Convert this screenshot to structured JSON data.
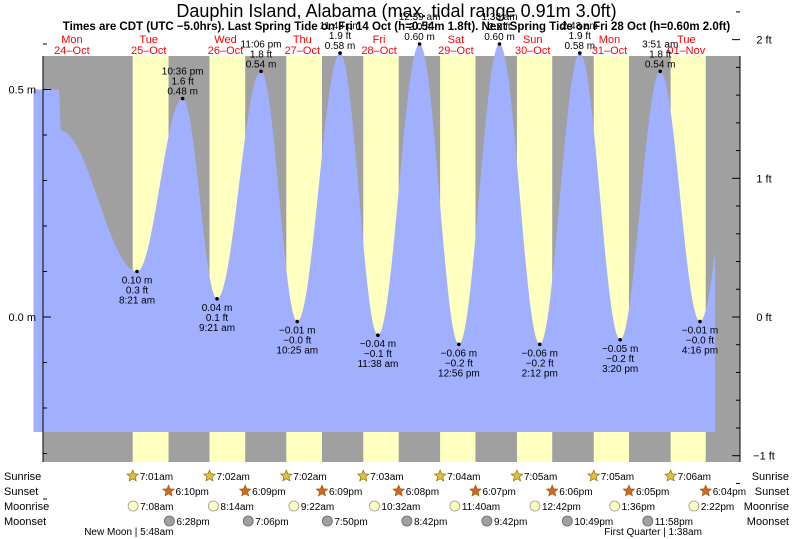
{
  "title": "Dauphin Island, Alabama (max. tidal range 0.91m 3.0ft)",
  "subtitle": "Times are CDT (UTC −5.0hrs). Last Spring Tide on Fri 14 Oct (h=0.54m 1.8ft). Next Spring Tide on Fri 28 Oct (h=0.60m 2.0ft)",
  "colors": {
    "night": "#a0a0a0",
    "day": "#ffffc0",
    "tide": "#a0b0ff",
    "date_red": "#ff0000",
    "sun_star": "#e0c040",
    "sunset_star": "#e06020",
    "moonrise": "#ffffc0",
    "moonset": "#a0a0a0"
  },
  "days": [
    {
      "dow": "Mon",
      "date": "24–Oct"
    },
    {
      "dow": "Tue",
      "date": "25–Oct"
    },
    {
      "dow": "Wed",
      "date": "26–Oct"
    },
    {
      "dow": "Thu",
      "date": "27–Oct"
    },
    {
      "dow": "Fri",
      "date": "28–Oct"
    },
    {
      "dow": "Sat",
      "date": "29–Oct"
    },
    {
      "dow": "Sun",
      "date": "30–Oct"
    },
    {
      "dow": "Mon",
      "date": "31–Oct"
    },
    {
      "dow": "Tue",
      "date": "01–Nov"
    }
  ],
  "row_labels": [
    "Sunrise",
    "Sunset",
    "Moonrise",
    "Moonset"
  ],
  "chart_data": {
    "type": "area",
    "x_unit": "hours since Mon 24-Oct 00:00 CDT",
    "xlim": [
      -3,
      200
    ],
    "ylim_m": [
      -0.44,
      0.74
    ],
    "y_ticks_left": [
      {
        "value": 0.5,
        "label": "0.5 m"
      },
      {
        "value": 0.0,
        "label": "0.0 m"
      }
    ],
    "y_ticks_right": [
      {
        "value": 0.6096,
        "label": "2 ft"
      },
      {
        "value": 0.3048,
        "label": "1 ft"
      },
      {
        "value": 0.0,
        "label": "0 ft"
      },
      {
        "value": -0.3048,
        "label": "−1 ft"
      }
    ],
    "tides": [
      {
        "t": 8.35,
        "h": 0.41,
        "type": "high",
        "labels": []
      },
      {
        "t": 32.35,
        "h": 0.1,
        "type": "low",
        "labels": [
          "0.10 m",
          "0.3 ft",
          "8:21 am"
        ]
      },
      {
        "t": 46.6,
        "h": 0.48,
        "type": "high",
        "labels": [
          "10:36 pm",
          "1.6 ft",
          "0.48 m"
        ]
      },
      {
        "t": 57.35,
        "h": 0.04,
        "type": "low",
        "labels": [
          "0.04 m",
          "0.1 ft",
          "9:21 am"
        ]
      },
      {
        "t": 71.1,
        "h": 0.54,
        "type": "high",
        "labels": [
          "11:06 pm",
          "1.8 ft",
          "0.54 m"
        ]
      },
      {
        "t": 82.42,
        "h": -0.01,
        "type": "low",
        "labels": [
          "−0.01 m",
          "−0.0 ft",
          "10:25 am"
        ]
      },
      {
        "t": 95.8,
        "h": 0.58,
        "type": "high",
        "labels": [
          "11:48 pm",
          "1.9 ft",
          "0.58 m"
        ]
      },
      {
        "t": 107.63,
        "h": -0.04,
        "type": "low",
        "labels": [
          "−0.04 m",
          "−0.1 ft",
          "11:38 am"
        ]
      },
      {
        "t": 120.65,
        "h": 0.6,
        "type": "high",
        "labels": [
          "12:39 am",
          "2.0 ft",
          "0.60 m"
        ]
      },
      {
        "t": 132.93,
        "h": -0.06,
        "type": "low",
        "labels": [
          "−0.06 m",
          "−0.2 ft",
          "12:56 pm"
        ]
      },
      {
        "t": 145.63,
        "h": 0.6,
        "type": "high",
        "labels": [
          "1:38 am",
          "2.0 ft",
          "0.60 m"
        ]
      },
      {
        "t": 158.2,
        "h": -0.06,
        "type": "low",
        "labels": [
          "−0.06 m",
          "−0.2 ft",
          "2:12 pm"
        ]
      },
      {
        "t": 170.72,
        "h": 0.58,
        "type": "high",
        "labels": [
          "2:43 am",
          "1.9 ft",
          "0.58 m"
        ]
      },
      {
        "t": 183.33,
        "h": -0.05,
        "type": "low",
        "labels": [
          "−0.05 m",
          "−0.2 ft",
          "3:20 pm"
        ]
      },
      {
        "t": 195.85,
        "h": 0.54,
        "type": "high",
        "labels": [
          "3:51 am",
          "1.8 ft",
          "0.54 m"
        ]
      },
      {
        "t": 208.27,
        "h": -0.01,
        "type": "low",
        "labels": [
          "−0.01 m",
          "−0.0 ft",
          "4:16 pm"
        ]
      },
      {
        "t": 221.0,
        "h": 0.5,
        "type": "high",
        "labels": []
      }
    ],
    "series_range": [
      0,
      213
    ],
    "daylight": [
      {
        "rise": 31.0,
        "set": 42.2
      },
      {
        "rise": 55.0,
        "set": 66.15
      },
      {
        "rise": 79.0,
        "set": 90.15
      },
      {
        "rise": 103.05,
        "set": 114.13
      },
      {
        "rise": 127.07,
        "set": 138.12
      },
      {
        "rise": 151.08,
        "set": 162.1
      },
      {
        "rise": 175.08,
        "set": 186.08
      },
      {
        "rise": 199.1,
        "set": 210.07
      }
    ],
    "sunrise": [
      {
        "t": 31.0,
        "label": "7:01am"
      },
      {
        "t": 55.0,
        "label": "7:02am"
      },
      {
        "t": 79.0,
        "label": "7:02am"
      },
      {
        "t": 103.05,
        "label": "7:03am"
      },
      {
        "t": 127.07,
        "label": "7:04am"
      },
      {
        "t": 151.08,
        "label": "7:05am"
      },
      {
        "t": 175.08,
        "label": "7:05am"
      },
      {
        "t": 199.1,
        "label": "7:06am"
      }
    ],
    "sunset": [
      {
        "t": 42.2,
        "label": "6:10pm"
      },
      {
        "t": 66.15,
        "label": "6:09pm"
      },
      {
        "t": 90.15,
        "label": "6:09pm"
      },
      {
        "t": 114.13,
        "label": "6:08pm"
      },
      {
        "t": 138.12,
        "label": "6:07pm"
      },
      {
        "t": 162.1,
        "label": "6:06pm"
      },
      {
        "t": 186.08,
        "label": "6:05pm"
      },
      {
        "t": 210.07,
        "label": "6:04pm"
      }
    ],
    "moonrise": [
      {
        "t": 31.13,
        "label": "7:08am"
      },
      {
        "t": 56.23,
        "label": "8:14am"
      },
      {
        "t": 81.37,
        "label": "9:22am"
      },
      {
        "t": 106.53,
        "label": "10:32am"
      },
      {
        "t": 131.67,
        "label": "11:40am"
      },
      {
        "t": 156.7,
        "label": "12:42pm"
      },
      {
        "t": 181.6,
        "label": "1:36pm"
      },
      {
        "t": 206.37,
        "label": "2:22pm"
      }
    ],
    "moonset": [
      {
        "t": 42.47,
        "label": "6:28pm"
      },
      {
        "t": 67.1,
        "label": "7:06pm"
      },
      {
        "t": 91.83,
        "label": "7:50pm"
      },
      {
        "t": 116.7,
        "label": "8:42pm"
      },
      {
        "t": 141.7,
        "label": "9:42pm"
      },
      {
        "t": 166.82,
        "label": "10:49pm"
      },
      {
        "t": 191.97,
        "label": "11:58pm"
      }
    ],
    "moon_phases": [
      {
        "t": 29.8,
        "label": "New Moon | 5:48am"
      },
      {
        "t": 193.63,
        "label": "First Quarter | 1:38am"
      }
    ]
  }
}
